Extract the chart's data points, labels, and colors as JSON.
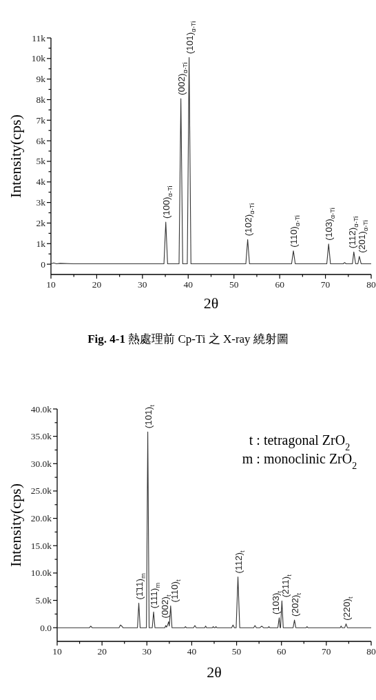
{
  "chart_data": [
    {
      "type": "line",
      "xlabel": "2θ",
      "ylabel": "Intensity(cps)",
      "xlim": [
        10,
        80
      ],
      "ylim": [
        -500,
        11000
      ],
      "xticks": [
        10,
        {
          "value": 15,
          "label": null
        },
        20,
        {
          "value": 25,
          "label": null
        },
        30,
        {
          "value": 35,
          "label": null
        },
        40,
        {
          "value": 45,
          "label": null
        },
        50,
        {
          "value": 55,
          "label": null
        },
        60,
        {
          "value": 65,
          "label": null
        },
        70,
        {
          "value": 75,
          "label": null
        },
        80
      ],
      "yticks": [
        0,
        {
          "value": 500,
          "label": null
        },
        {
          "value": 1000,
          "label": "1k"
        },
        {
          "value": 1500,
          "label": null
        },
        {
          "value": 2000,
          "label": "2k"
        },
        {
          "value": 2500,
          "label": null
        },
        {
          "value": 3000,
          "label": "3k"
        },
        {
          "value": 3500,
          "label": null
        },
        {
          "value": 4000,
          "label": "4k"
        },
        {
          "value": 4500,
          "label": null
        },
        {
          "value": 5000,
          "label": "5k"
        },
        {
          "value": 5500,
          "label": null
        },
        {
          "value": 6000,
          "label": "6k"
        },
        {
          "value": 6500,
          "label": null
        },
        {
          "value": 7000,
          "label": "7k"
        },
        {
          "value": 7500,
          "label": null
        },
        {
          "value": 8000,
          "label": "8k"
        },
        {
          "value": 8500,
          "label": null
        },
        {
          "value": 9000,
          "label": "9k"
        },
        {
          "value": 9500,
          "label": null
        },
        {
          "value": 10000,
          "label": "10k"
        },
        {
          "value": 10500,
          "label": null
        },
        {
          "value": 11000,
          "label": "11k"
        }
      ],
      "series": [
        {
          "color": "#333333",
          "x": [
            10,
            10.6,
            11.2,
            12,
            15,
            20,
            25,
            30,
            34.7,
            35.1,
            35.5,
            38.0,
            38.4,
            38.8,
            39.8,
            40.2,
            40.6,
            52.6,
            53.0,
            53.4,
            62.6,
            63.0,
            63.4,
            70.3,
            70.7,
            71.1,
            73.9,
            74.2,
            74.5,
            75.9,
            76.2,
            76.6,
            77.1,
            77.4,
            77.8,
            80
          ],
          "values": [
            20,
            60,
            20,
            40,
            20,
            20,
            20,
            20,
            20,
            2050,
            20,
            20,
            8050,
            20,
            20,
            10050,
            20,
            20,
            1200,
            20,
            20,
            650,
            20,
            20,
            980,
            20,
            20,
            80,
            20,
            20,
            600,
            20,
            20,
            380,
            20,
            20
          ]
        }
      ],
      "annotations": [
        {
          "text": "(100)$_{α-Ti}$",
          "x": 35.1,
          "y": 2050
        },
        {
          "text": "(002)$_{α-Ti}$",
          "x": 38.4,
          "y": 8050
        },
        {
          "text": "(101)$_{α-Ti}$",
          "x": 40.2,
          "y": 10050
        },
        {
          "text": "(102)$_{α-Ti}$",
          "x": 53.0,
          "y": 1200
        },
        {
          "text": "(110)$_{α-Ti}$",
          "x": 63.0,
          "y": 650
        },
        {
          "text": "(103)$_{α-Ti}$",
          "x": 70.7,
          "y": 980
        },
        {
          "text": "(112)$_{α-Ti}$",
          "x": 76.2,
          "y": 600
        },
        {
          "text": "(201)$_{α-Ti}$",
          "x": 77.4,
          "y": 380
        },
        "**Fig. 4-1** 熱處理前 Cp-Ti 之 X-ray 繞射圖"
      ]
    },
    {
      "type": "line",
      "xlabel": "2θ",
      "ylabel": "Intensity(cps)",
      "xlim": [
        10,
        80
      ],
      "ylim": [
        -2500,
        40000
      ],
      "xticks": [
        10,
        {
          "value": 15,
          "label": null
        },
        20,
        {
          "value": 25,
          "label": null
        },
        30,
        {
          "value": 35,
          "label": null
        },
        40,
        {
          "value": 45,
          "label": null
        },
        50,
        {
          "value": 55,
          "label": null
        },
        60,
        {
          "value": 65,
          "label": null
        },
        70,
        {
          "value": 75,
          "label": null
        },
        80
      ],
      "yticks": [
        {
          "value": 0,
          "label": "0.0"
        },
        {
          "value": 2500,
          "label": null
        },
        {
          "value": 5000,
          "label": "5.0k"
        },
        {
          "value": 7500,
          "label": null
        },
        {
          "value": 10000,
          "label": "10.0k"
        },
        {
          "value": 12500,
          "label": null
        },
        {
          "value": 15000,
          "label": "15.0k"
        },
        {
          "value": 17500,
          "label": null
        },
        {
          "value": 20000,
          "label": "20.0k"
        },
        {
          "value": 22500,
          "label": null
        },
        {
          "value": 25000,
          "label": "25.0k"
        },
        {
          "value": 27500,
          "label": null
        },
        {
          "value": 30000,
          "label": "30.0k"
        },
        {
          "value": 32500,
          "label": null
        },
        {
          "value": 35000,
          "label": "35.0k"
        },
        {
          "value": 37500,
          "label": null
        },
        {
          "value": 40000,
          "label": "40.0k"
        }
      ],
      "series": [
        {
          "color": "#333333",
          "x": [
            10,
            17.2,
            17.5,
            17.8,
            23.8,
            24.1,
            24.4,
            24.7,
            27.9,
            28.2,
            28.5,
            29.9,
            30.2,
            30.5,
            31.2,
            31.5,
            31.8,
            34.0,
            34.2,
            34.4,
            34.7,
            34.85,
            35.0,
            35.3,
            35.6,
            38.4,
            38.6,
            38.8,
            40.4,
            40.7,
            41.0,
            42.9,
            43.1,
            43.3,
            44.6,
            44.8,
            45.0,
            45.2,
            45.4,
            45.6,
            48.9,
            49.2,
            49.5,
            49.9,
            50.3,
            50.7,
            53.8,
            54.1,
            54.4,
            55.2,
            55.6,
            56.0,
            57.0,
            57.2,
            57.4,
            59.2,
            59.5,
            59.7,
            59.8,
            60.1,
            60.4,
            62.6,
            62.9,
            63.2,
            65.5,
            65.7,
            65.9,
            73.1,
            73.3,
            73.5,
            74.1,
            74.4,
            74.7,
            80
          ],
          "values": [
            0,
            0,
            300,
            0,
            0,
            500,
            300,
            0,
            0,
            4500,
            0,
            0,
            35800,
            0,
            0,
            2900,
            0,
            0,
            400,
            100,
            700,
            1100,
            300,
            4000,
            0,
            0,
            200,
            0,
            0,
            400,
            0,
            0,
            300,
            0,
            0,
            200,
            0,
            0,
            200,
            0,
            0,
            500,
            0,
            0,
            9300,
            0,
            0,
            400,
            0,
            0,
            300,
            0,
            0,
            200,
            0,
            0,
            1800,
            0,
            0,
            4900,
            0,
            0,
            1400,
            0,
            0,
            200,
            0,
            0,
            300,
            0,
            0,
            700,
            0,
            0
          ]
        }
      ],
      "annotations": [
        {
          "text": "(1̄11)$_{m}$",
          "x": 28.2,
          "y": 4500
        },
        {
          "text": "(101)$_{t}$",
          "x": 30.2,
          "y": 35800
        },
        {
          "text": "(111)$_{m}$",
          "x": 31.5,
          "y": 2900
        },
        {
          "text": "(002)$_{t}$",
          "x": 34.85,
          "y": 1100
        },
        {
          "text": "(110)$_{t}$",
          "x": 35.3,
          "y": 4000
        },
        {
          "text": "(112)$_{t}$",
          "x": 50.3,
          "y": 9300
        },
        {
          "text": "(103)$_{t}$",
          "x": 59.5,
          "y": 1800
        },
        {
          "text": "(211)$_{t}$",
          "x": 60.1,
          "y": 4900
        },
        {
          "text": "(202)$_{t}$",
          "x": 62.9,
          "y": 1400
        },
        {
          "text": "(220)$_{t}$",
          "x": 74.4,
          "y": 700
        },
        "t : tetragonal ZrO$_{2}$",
        "m : monoclinic ZrO$_{2}$"
      ]
    }
  ]
}
